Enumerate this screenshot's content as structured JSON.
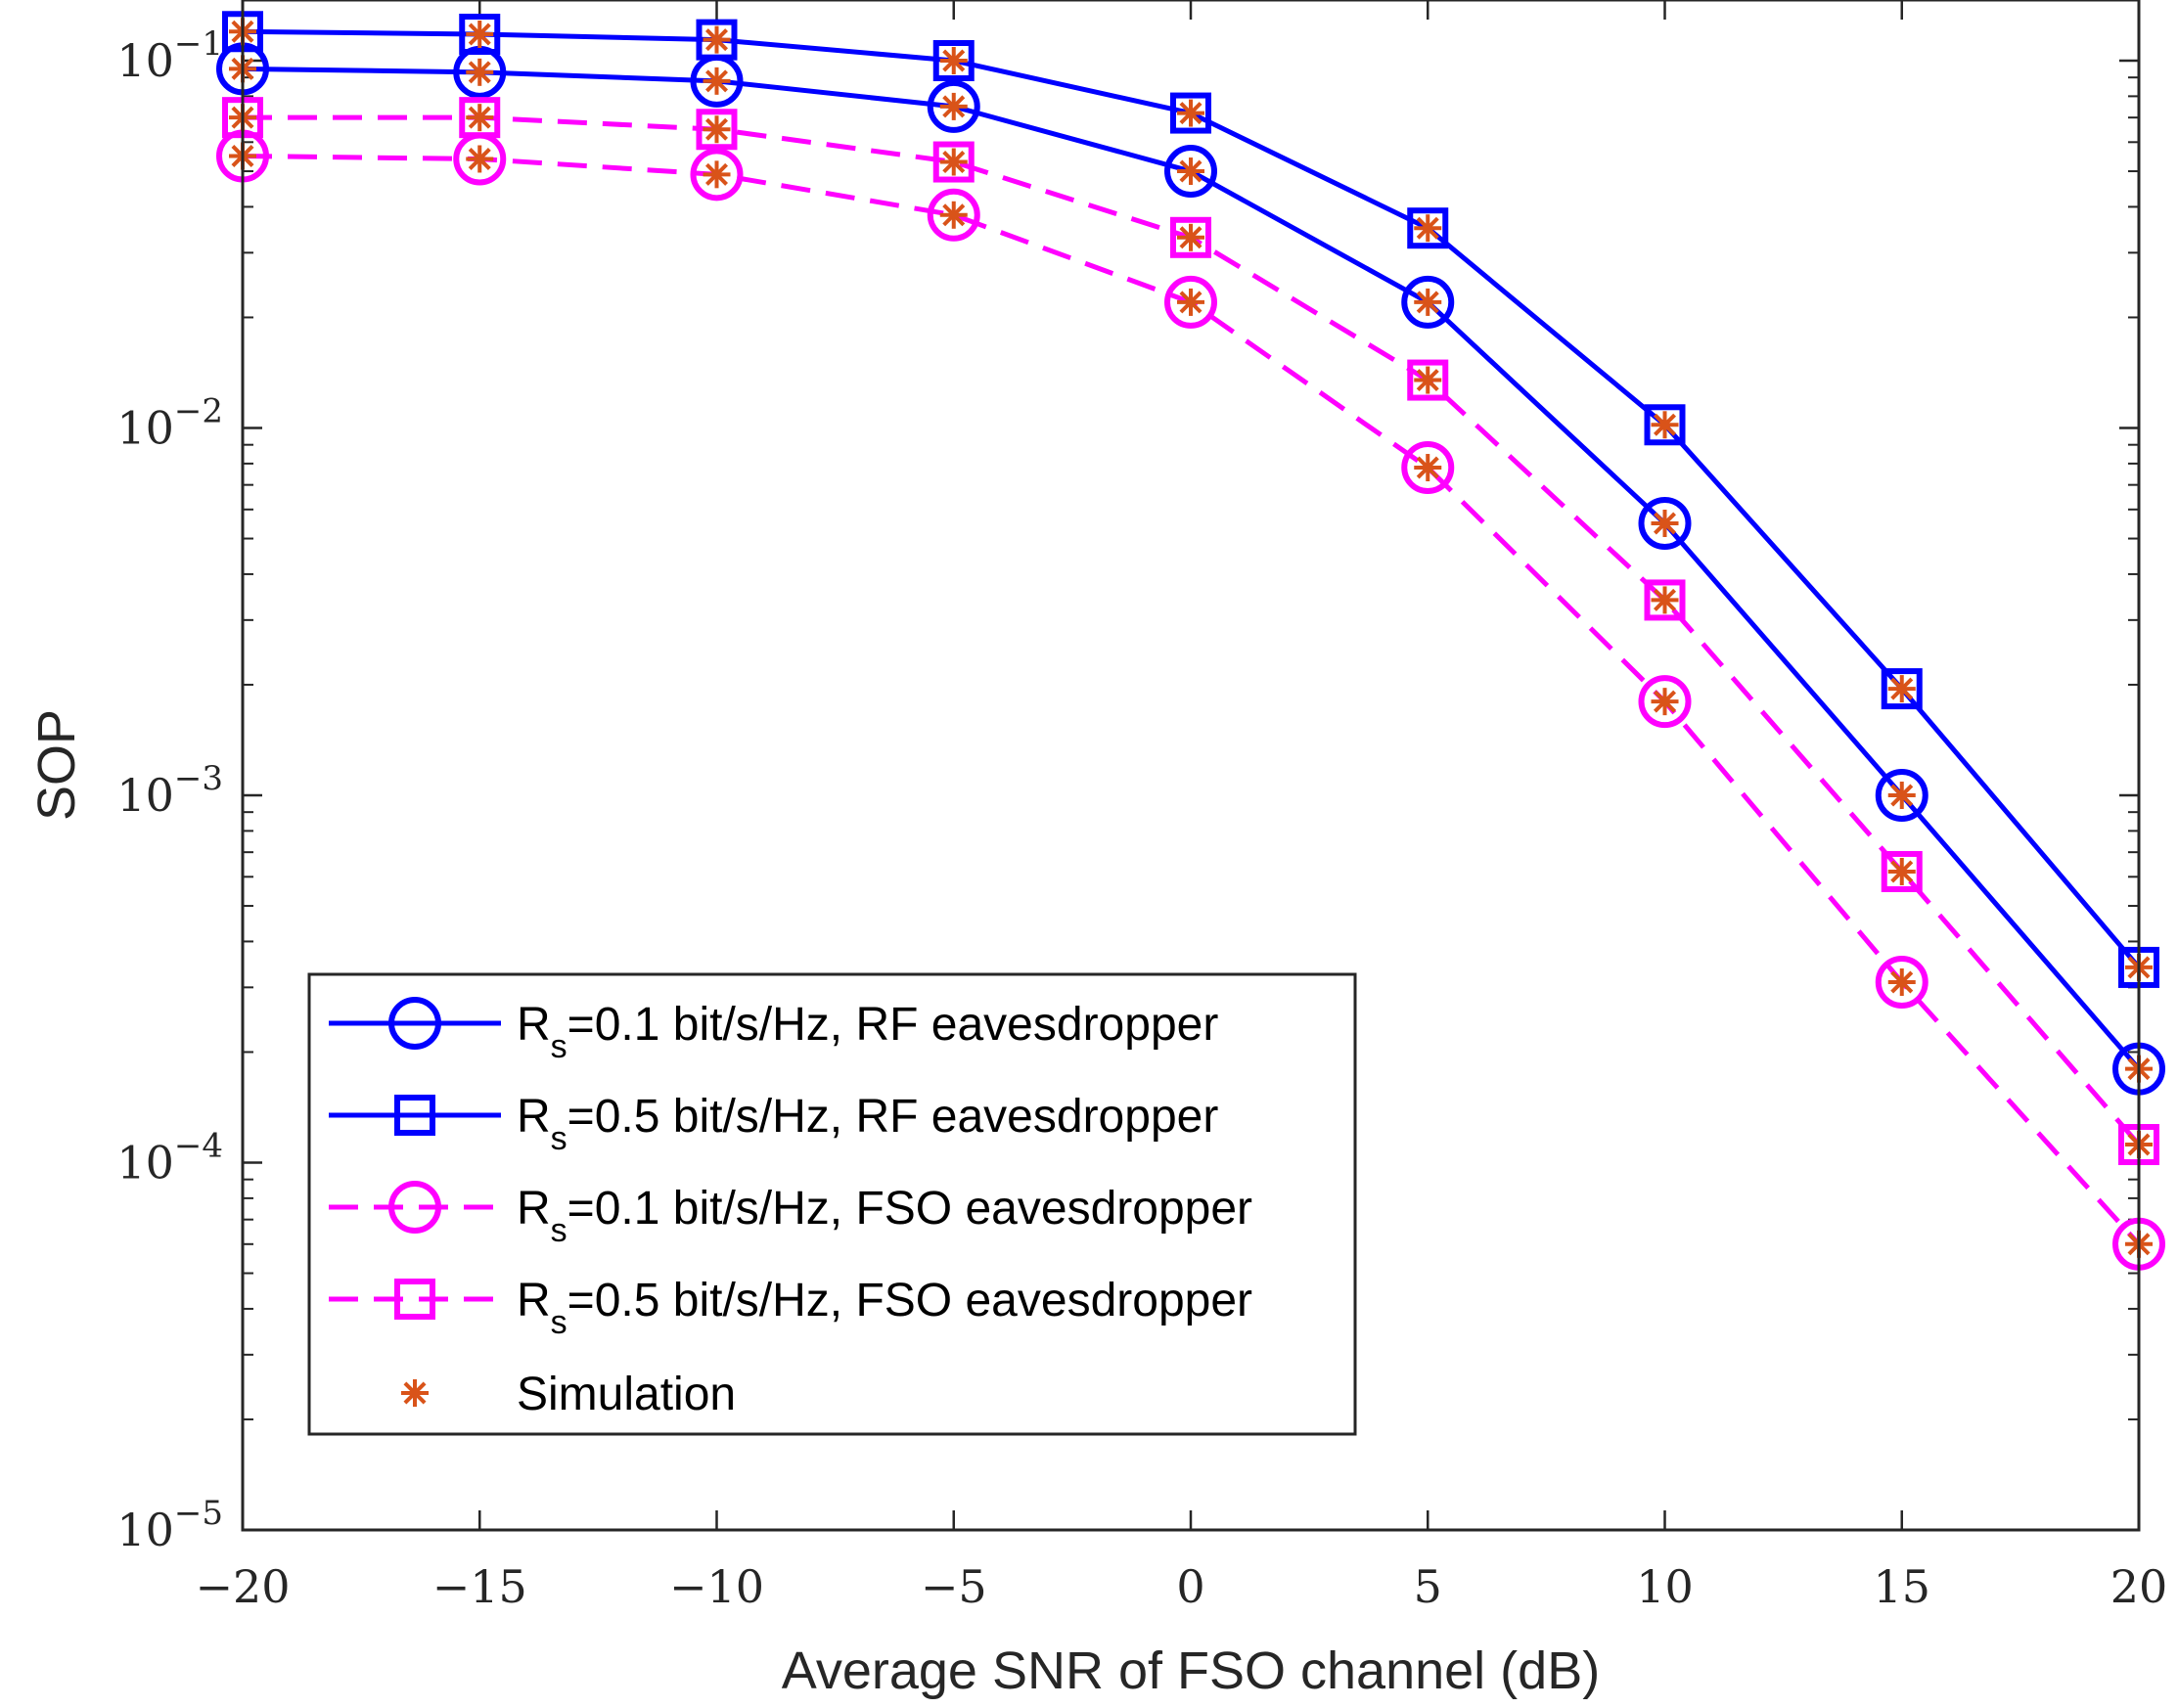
{
  "chart_data": {
    "type": "line",
    "xlabel": "Average SNR of FSO channel (dB)",
    "ylabel": "SOP",
    "xscale": "linear",
    "yscale": "log",
    "xlim": [
      -20,
      20
    ],
    "ylim": [
      1e-05,
      0.13
    ],
    "xticks": [
      -20,
      -15,
      -10,
      -5,
      0,
      5,
      10,
      15,
      20
    ],
    "xtick_labels": [
      "−20",
      "−15",
      "−10",
      "−5",
      "0",
      "5",
      "10",
      "15",
      "20"
    ],
    "yticks": [
      {
        "value": 0.1,
        "base": "10",
        "exp": "−1"
      },
      {
        "value": 0.01,
        "base": "10",
        "exp": "−2"
      },
      {
        "value": 0.001,
        "base": "10",
        "exp": "−3"
      },
      {
        "value": 0.0001,
        "base": "10",
        "exp": "−4"
      },
      {
        "value": 1e-05,
        "base": "10",
        "exp": "−5"
      }
    ],
    "grid": false,
    "legend_position": "bottom-left",
    "x": [
      -20,
      -15,
      -10,
      -5,
      0,
      5,
      10,
      15,
      20
    ],
    "series": [
      {
        "name": "Rs=0.1 bit/s/Hz, RF eavesdropper",
        "label_main": "R",
        "label_sub": "s",
        "label_rest": "=0.1 bit/s/Hz, RF eavesdropper",
        "color": "#0000ff",
        "dash": "solid",
        "marker": "circle",
        "values": [
          0.095,
          0.093,
          0.088,
          0.075,
          0.05,
          0.022,
          0.0055,
          0.001,
          0.00018
        ]
      },
      {
        "name": "Rs=0.5 bit/s/Hz, RF eavesdropper",
        "label_main": "R",
        "label_sub": "s",
        "label_rest": "=0.5 bit/s/Hz, RF eavesdropper",
        "color": "#0000ff",
        "dash": "solid",
        "marker": "square",
        "values": [
          0.12,
          0.118,
          0.114,
          0.1,
          0.072,
          0.035,
          0.0102,
          0.00195,
          0.00034
        ]
      },
      {
        "name": "Rs=0.1 bit/s/Hz, FSO eavesdropper",
        "label_main": "R",
        "label_sub": "s",
        "label_rest": "=0.1 bit/s/Hz, FSO eavesdropper",
        "color": "#ff00ff",
        "dash": "dashed",
        "marker": "circle",
        "values": [
          0.055,
          0.054,
          0.049,
          0.038,
          0.022,
          0.0078,
          0.0018,
          0.00031,
          6e-05
        ]
      },
      {
        "name": "Rs=0.5 bit/s/Hz, FSO eavesdropper",
        "label_main": "R",
        "label_sub": "s",
        "label_rest": "=0.5 bit/s/Hz, FSO eavesdropper",
        "color": "#ff00ff",
        "dash": "dashed",
        "marker": "square",
        "values": [
          0.07,
          0.07,
          0.065,
          0.053,
          0.033,
          0.0135,
          0.0034,
          0.00062,
          0.000112
        ]
      }
    ],
    "simulation": {
      "name": "Simulation",
      "color": "#d95319",
      "marker": "asterisk"
    }
  }
}
